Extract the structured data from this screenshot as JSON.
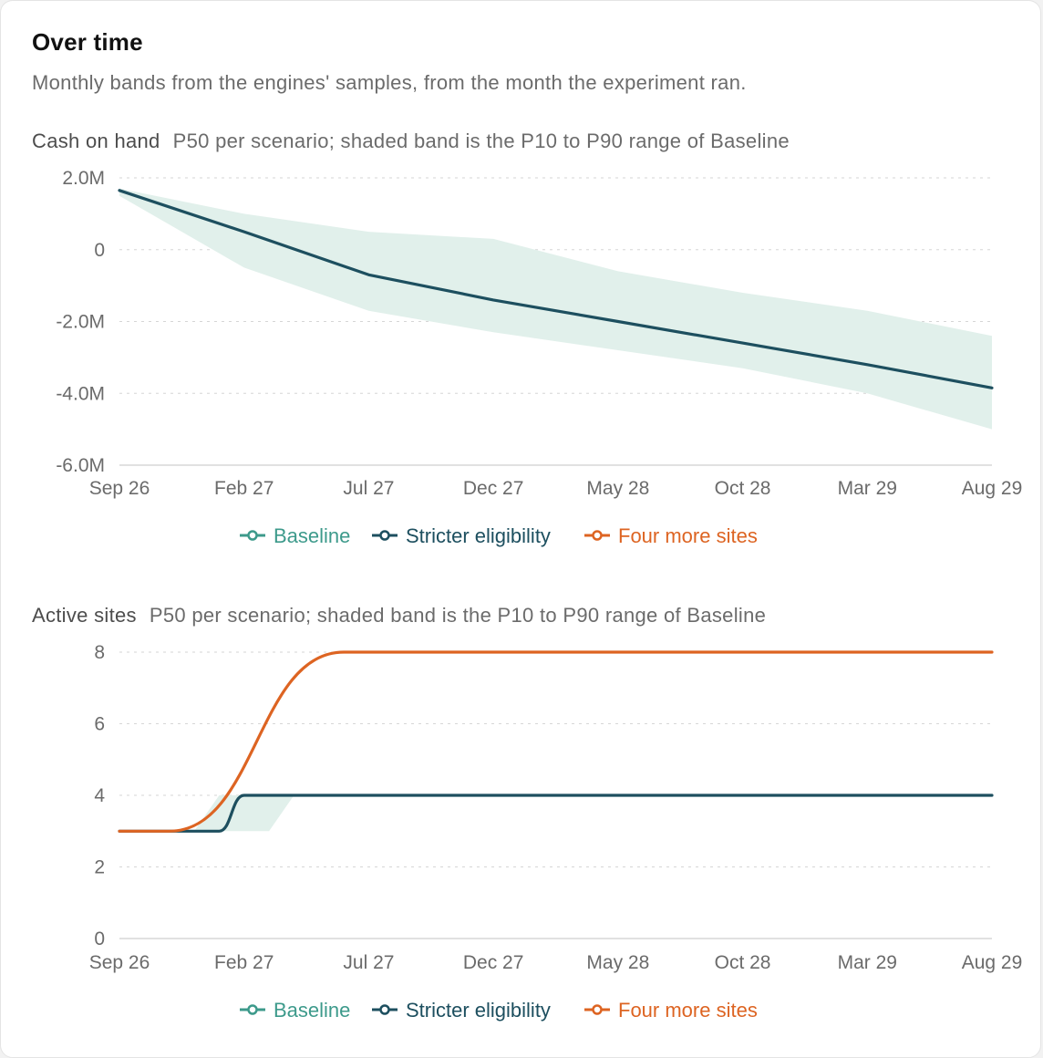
{
  "header": {
    "title": "Over time",
    "subtitle": "Monthly bands from the engines' samples, from the month the experiment ran."
  },
  "colors": {
    "baseline": "#3d9a8b",
    "stricter": "#1d4f5f",
    "four_more": "#dd6422",
    "band": "#e1f0eb",
    "grid": "#d6d6d6",
    "axis": "#cfcfcf"
  },
  "legend": [
    {
      "key": "baseline",
      "label": "Baseline",
      "color": "#3d9a8b"
    },
    {
      "key": "stricter",
      "label": "Stricter eligibility",
      "color": "#1d4f5f"
    },
    {
      "key": "four_more",
      "label": "Four more sites",
      "color": "#dd6422"
    }
  ],
  "chart_data": [
    {
      "type": "line",
      "title": "Cash on hand",
      "subtitle": "P50 per scenario; shaded band is the P10 to P90 range of Baseline",
      "x_ticks": [
        "Sep 26",
        "Feb 27",
        "Jul 27",
        "Dec 27",
        "May 28",
        "Oct 28",
        "Mar 29",
        "Aug 29"
      ],
      "x_range": [
        "Sep 26",
        "Aug 29"
      ],
      "y_ticks": [
        "2.0M",
        "0",
        "-2.0M",
        "-4.0M",
        "-6.0M"
      ],
      "ylim": [
        -6000000,
        2000000
      ],
      "grid": true,
      "legend_position": "bottom",
      "band": {
        "series": "Baseline",
        "x": [
          "Sep 26",
          "Feb 27",
          "Jul 27",
          "Dec 27",
          "May 28",
          "Oct 28",
          "Mar 29",
          "Aug 29"
        ],
        "p10": [
          1500000,
          -500000,
          -1700000,
          -2300000,
          -2800000,
          -3300000,
          -4000000,
          -5000000
        ],
        "p90": [
          1700000,
          1000000,
          500000,
          300000,
          -600000,
          -1200000,
          -1700000,
          -2400000
        ]
      },
      "series": [
        {
          "name": "Stricter eligibility",
          "color": "#1d4f5f",
          "x": [
            "Sep 26",
            "Feb 27",
            "Jul 27",
            "Dec 27",
            "May 28",
            "Oct 28",
            "Mar 29",
            "Aug 29"
          ],
          "values": [
            1650000,
            500000,
            -700000,
            -1400000,
            -2000000,
            -2600000,
            -3200000,
            -3850000
          ]
        }
      ]
    },
    {
      "type": "line",
      "title": "Active sites",
      "subtitle": "P50 per scenario; shaded band is the P10 to P90 range of Baseline",
      "x_ticks": [
        "Sep 26",
        "Feb 27",
        "Jul 27",
        "Dec 27",
        "May 28",
        "Oct 28",
        "Mar 29",
        "Aug 29"
      ],
      "x_range": [
        "Sep 26",
        "Aug 29"
      ],
      "y_ticks": [
        "8",
        "6",
        "4",
        "2",
        "0"
      ],
      "ylim": [
        0,
        8
      ],
      "grid": true,
      "legend_position": "bottom",
      "band": {
        "series": "Baseline",
        "x": [
          "Sep 26",
          "Dec 26",
          "Jan 27",
          "Mar 27",
          "Apr 27",
          "Aug 29"
        ],
        "p10": [
          3,
          3,
          3,
          3,
          4,
          4
        ],
        "p90": [
          3,
          3,
          4,
          4,
          4,
          4
        ]
      },
      "series": [
        {
          "name": "Stricter eligibility",
          "color": "#1d4f5f",
          "x": [
            "Sep 26",
            "Jan 27",
            "Feb 27",
            "Aug 29"
          ],
          "values": [
            3,
            3,
            4,
            4
          ]
        },
        {
          "name": "Four more sites",
          "color": "#dd6422",
          "x": [
            "Sep 26",
            "Nov 26",
            "Jun 27",
            "Aug 29"
          ],
          "values": [
            3,
            3,
            8,
            8
          ]
        }
      ]
    }
  ]
}
